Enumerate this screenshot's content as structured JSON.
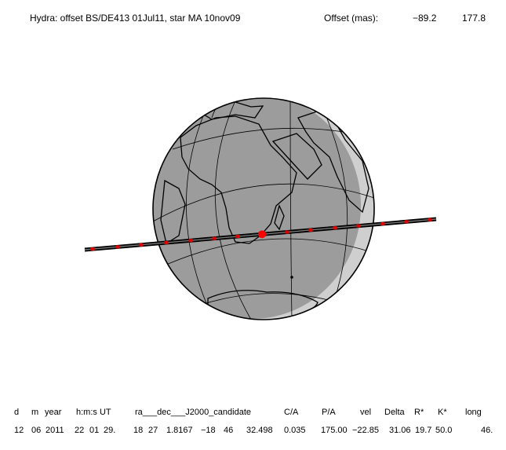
{
  "header": {
    "title": "Hydra: offset BS/DE413 01Jul11, star MA 10nov09",
    "offset_label": "Offset (mas):",
    "offsets": [
      "−89.2",
      "177.8"
    ]
  },
  "table": {
    "headers": [
      "d",
      "m",
      "year",
      "h:m:s UT",
      "ra___dec___J2000_candidate",
      "C/A",
      "P/A",
      "vel",
      "Delta",
      "R*",
      "K*",
      "long"
    ],
    "rows": [
      [
        "12",
        "06",
        "2011",
        "22",
        "01",
        "29.",
        "18",
        "27",
        "1.8167",
        "−18",
        "46",
        "32.498",
        "0.035",
        "175.00",
        "−22.85",
        "31.06",
        "19.7",
        "50.0",
        "46."
      ]
    ]
  }
}
